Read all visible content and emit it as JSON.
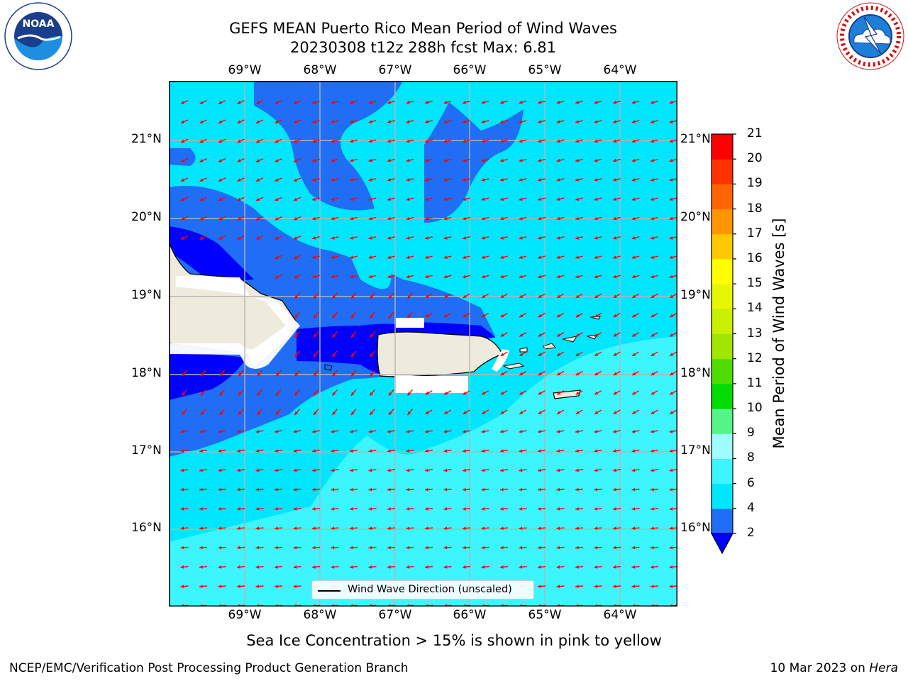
{
  "title": {
    "line1": "GEFS MEAN Puerto Rico Mean Period of Wind Waves",
    "line2": "20230308 t12z 288h fcst   Max: 6.81"
  },
  "logos": {
    "left": {
      "name": "noaa-logo",
      "text": "NOAA",
      "ring_text": "NATIONAL OCEANIC AND ATMOSPHERIC ADMINISTRATION · U.S. DEPARTMENT OF COMMERCE"
    },
    "right": {
      "name": "nws-logo",
      "ring_text": "NATIONAL WEATHER SERVICE"
    }
  },
  "map": {
    "lon_labels": [
      "69°W",
      "68°W",
      "67°W",
      "66°W",
      "65°W",
      "64°W"
    ],
    "lat_labels": [
      "21°N",
      "20°N",
      "19°N",
      "18°N",
      "17°N",
      "16°N"
    ],
    "legend_label": "Wind Wave Direction (unscaled)",
    "arrow_color": "#ff0000",
    "coast_color": "#000000",
    "land_color": "#efebdc"
  },
  "colorbar": {
    "title": "Mean Period of Wind Waves [s]",
    "ticks": [
      "2",
      "4",
      "6",
      "8",
      "9",
      "10",
      "11",
      "12",
      "13",
      "14",
      "15",
      "16",
      "17",
      "18",
      "19",
      "20",
      "21"
    ],
    "colors": [
      "#1f6ef5",
      "#00e6ff",
      "#3df5ff",
      "#9ffcff",
      "#55f58a",
      "#00dc00",
      "#50dc00",
      "#a0e600",
      "#c8f000",
      "#e6f500",
      "#ffff00",
      "#ffc800",
      "#ff9600",
      "#ff6400",
      "#ff3200",
      "#ff0000"
    ],
    "extend_color": "#0000ff"
  },
  "caption": "Sea Ice Concentration > 15% is shown in pink to yellow",
  "footer": {
    "left": "NCEP/EMC/Verification Post Processing Product Generation Branch",
    "right_date": "10 Mar 2023 on ",
    "right_host": "Hera"
  }
}
